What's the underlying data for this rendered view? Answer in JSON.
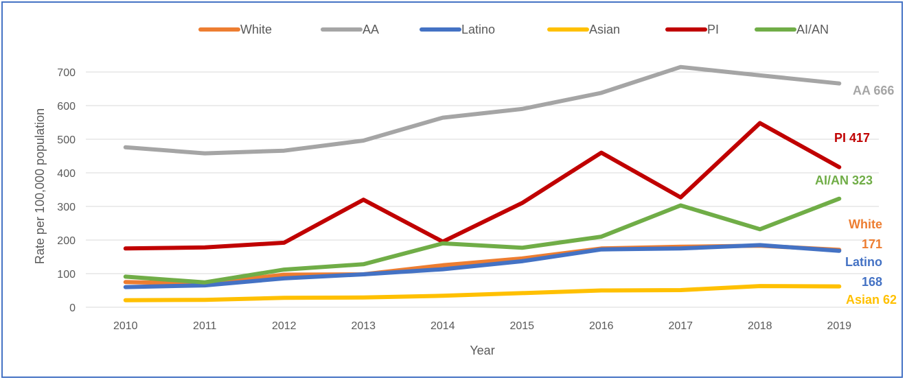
{
  "chart_data": {
    "type": "line",
    "title": "",
    "xlabel": "Year",
    "ylabel": "Rate per 100,000 population",
    "x": [
      "2010",
      "2011",
      "2012",
      "2013",
      "2014",
      "2015",
      "2016",
      "2017",
      "2018",
      "2019"
    ],
    "ylim": [
      0,
      700
    ],
    "yticks": [
      "0",
      "100",
      "200",
      "300",
      "400",
      "500",
      "600",
      "700"
    ],
    "grid": true,
    "legend_position": "top",
    "series": [
      {
        "name": "White",
        "color": "#ed7d31",
        "values": [
          75,
          70,
          97,
          98,
          125,
          145,
          175,
          180,
          183,
          171
        ],
        "end_label": [
          "White",
          "171"
        ]
      },
      {
        "name": "AA",
        "color": "#a5a5a5",
        "values": [
          476,
          458,
          466,
          496,
          564,
          590,
          638,
          715,
          690,
          666
        ],
        "end_label": [
          "AA 666"
        ]
      },
      {
        "name": "Latino",
        "color": "#4472c4",
        "values": [
          60,
          65,
          86,
          98,
          113,
          137,
          172,
          175,
          185,
          168
        ],
        "end_label": [
          "Latino",
          "168"
        ]
      },
      {
        "name": "Asian",
        "color": "#ffc000",
        "values": [
          21,
          22,
          28,
          29,
          34,
          42,
          50,
          51,
          63,
          62
        ],
        "end_label": [
          "Asian 62"
        ]
      },
      {
        "name": "PI",
        "color": "#c00000",
        "values": [
          175,
          178,
          192,
          320,
          195,
          310,
          460,
          327,
          548,
          417
        ],
        "end_label": [
          "PI 417"
        ]
      },
      {
        "name": "AI/AN",
        "color": "#70ad47",
        "values": [
          91,
          74,
          112,
          128,
          190,
          177,
          210,
          303,
          232,
          323
        ],
        "end_label": [
          "AI/AN 323"
        ]
      }
    ]
  }
}
